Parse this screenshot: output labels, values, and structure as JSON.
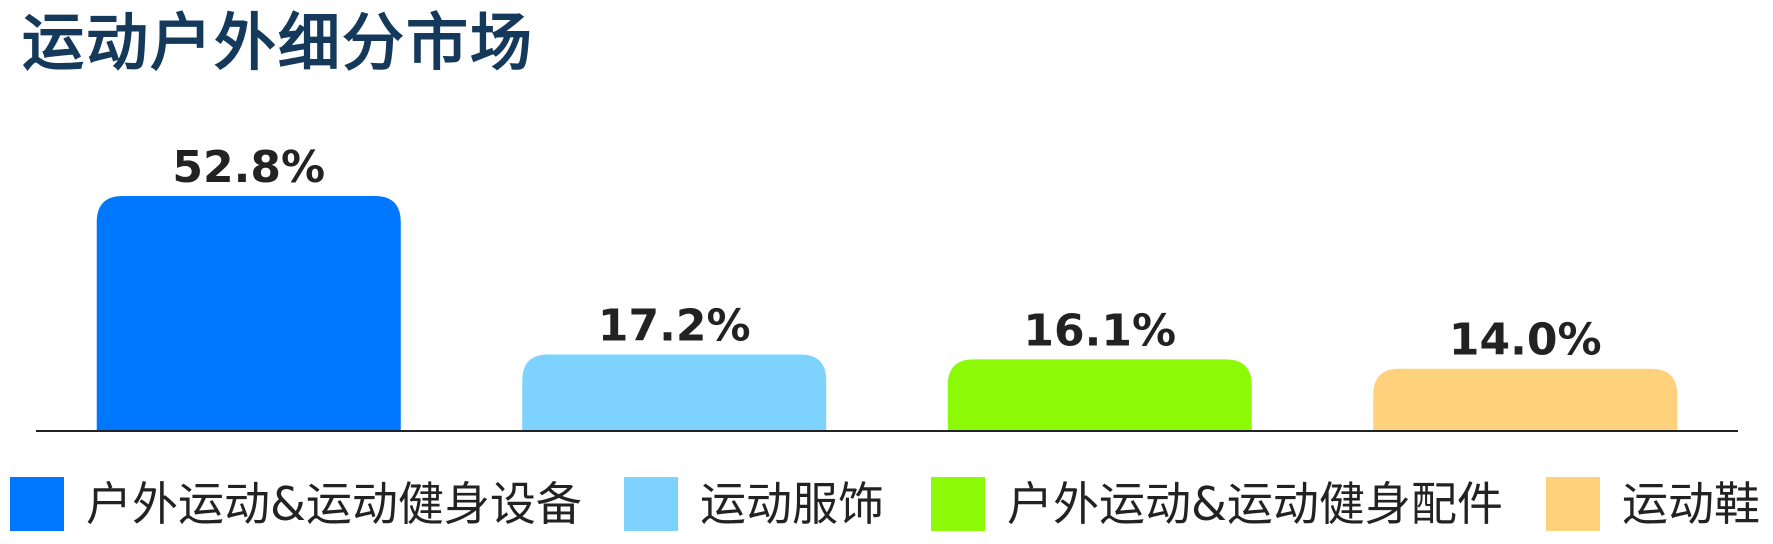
{
  "title": "运动户外细分市场",
  "chart_data": {
    "type": "bar",
    "categories": [
      "户外运动&运动健身设备",
      "运动服饰",
      "户外运动&运动健身配件",
      "运动鞋"
    ],
    "values": [
      52.8,
      17.2,
      16.1,
      14.0
    ],
    "data_labels": [
      "52.8%",
      "17.2%",
      "16.1%",
      "14.0%"
    ],
    "colors": [
      "#0077ff",
      "#7dd3fd",
      "#8cfa06",
      "#fed27c"
    ],
    "title": "运动户外细分市场",
    "xlabel": "",
    "ylabel": "",
    "ylim": [
      0,
      52.8
    ],
    "grid": false,
    "legend_placement": "bottom"
  },
  "legend": [
    {
      "label": "户外运动&运动健身设备",
      "color": "#0077ff"
    },
    {
      "label": "运动服饰",
      "color": "#7dd3fd"
    },
    {
      "label": "户外运动&运动健身配件",
      "color": "#8cfa06"
    },
    {
      "label": "运动鞋",
      "color": "#fed27c"
    }
  ]
}
